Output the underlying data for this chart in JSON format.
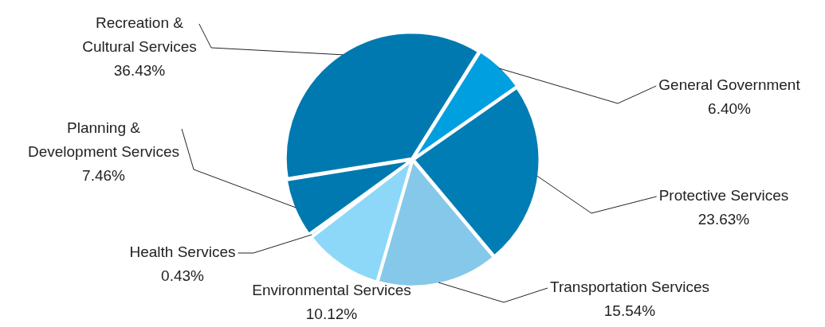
{
  "chart_data": {
    "type": "pie",
    "categories": [
      "General Government",
      "Protective Services",
      "Transportation Services",
      "Environmental Services",
      "Health Services",
      "Planning & Development Services",
      "Recreation & Cultural Services"
    ],
    "values": [
      6.4,
      23.63,
      15.54,
      10.12,
      0.43,
      7.46,
      36.43
    ],
    "value_labels": [
      "6.40%",
      "23.63%",
      "15.54%",
      "10.12%",
      "0.43%",
      "7.46%",
      "36.43%"
    ],
    "colors": [
      "#009fdf",
      "#007db4",
      "#86c8ea",
      "#8dd8f8",
      "#b5e6fa",
      "#0079b0",
      "#0079b0"
    ],
    "legend": false
  }
}
